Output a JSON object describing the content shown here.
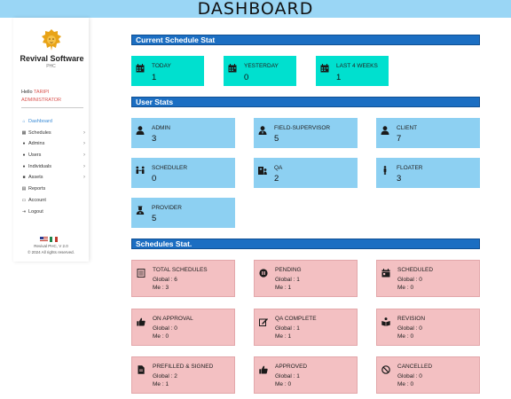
{
  "header": {
    "title": "DASHBOARD"
  },
  "sidebar": {
    "brand": "Revival Software",
    "brand_sub": "PHC",
    "hello_prefix": "Hello",
    "user_name": "TARIPI",
    "role": "ADMINISTRATOR",
    "items": [
      {
        "label": "Dashboard",
        "icon": "home-icon",
        "active": true,
        "expandable": false
      },
      {
        "label": "Schedules",
        "icon": "calendar-icon",
        "active": false,
        "expandable": true
      },
      {
        "label": "Admins",
        "icon": "user-icon",
        "active": false,
        "expandable": true
      },
      {
        "label": "Users",
        "icon": "users-icon",
        "active": false,
        "expandable": true
      },
      {
        "label": "Individuals",
        "icon": "users-icon",
        "active": false,
        "expandable": true
      },
      {
        "label": "Assets",
        "icon": "briefcase-icon",
        "active": false,
        "expandable": true
      },
      {
        "label": "Reports",
        "icon": "document-icon",
        "active": false,
        "expandable": false
      },
      {
        "label": "Account",
        "icon": "id-card-icon",
        "active": false,
        "expandable": false
      },
      {
        "label": "Logout",
        "icon": "logout-icon",
        "active": false,
        "expandable": false
      }
    ],
    "version": "Revival PHC, V 2.0",
    "copyright": "© 2024 All rights reserved."
  },
  "current_schedule": {
    "title": "Current Schedule Stat",
    "cards": [
      {
        "label": "TODAY",
        "value": "1"
      },
      {
        "label": "YESTERDAY",
        "value": "0"
      },
      {
        "label": "LAST 4 WEEKS",
        "value": "1"
      }
    ]
  },
  "user_stats": {
    "title": "User Stats",
    "cards": [
      {
        "label": "ADMIN",
        "value": "3",
        "icon": "user-icon"
      },
      {
        "label": "FIELD-SUPERVISOR",
        "value": "5",
        "icon": "user-tie-icon"
      },
      {
        "label": "CLIENT",
        "value": "7",
        "icon": "user-icon"
      },
      {
        "label": "SCHEDULER",
        "value": "0",
        "icon": "people-arrows-icon"
      },
      {
        "label": "QA",
        "value": "2",
        "icon": "hospital-user-icon"
      },
      {
        "label": "FLOATER",
        "value": "3",
        "icon": "person-icon"
      },
      {
        "label": "PROVIDER",
        "value": "5",
        "icon": "user-nurse-icon"
      }
    ]
  },
  "schedules_stat": {
    "title": "Schedules Stat.",
    "global_label": "Global :",
    "me_label": "Me :",
    "cards": [
      {
        "label": "TOTAL SCHEDULES",
        "global": "6",
        "me": "3",
        "icon": "list-icon"
      },
      {
        "label": "PENDING",
        "global": "1",
        "me": "1",
        "icon": "pause-icon"
      },
      {
        "label": "SCHEDULED",
        "global": "0",
        "me": "0",
        "icon": "calendar-day-icon"
      },
      {
        "label": "ON APPROVAL",
        "global": "0",
        "me": "0",
        "icon": "thumbs-up-icon"
      },
      {
        "label": "QA COMPLETE",
        "global": "1",
        "me": "1",
        "icon": "edit-icon"
      },
      {
        "label": "REVISION",
        "global": "0",
        "me": "0",
        "icon": "book-reader-icon"
      },
      {
        "label": "PREFILLED & SIGNED",
        "global": "2",
        "me": "1",
        "icon": "file-icon"
      },
      {
        "label": "APPROVED",
        "global": "1",
        "me": "0",
        "icon": "thumbs-up-icon"
      },
      {
        "label": "CANCELLED",
        "global": "0",
        "me": "0",
        "icon": "ban-icon"
      }
    ]
  }
}
